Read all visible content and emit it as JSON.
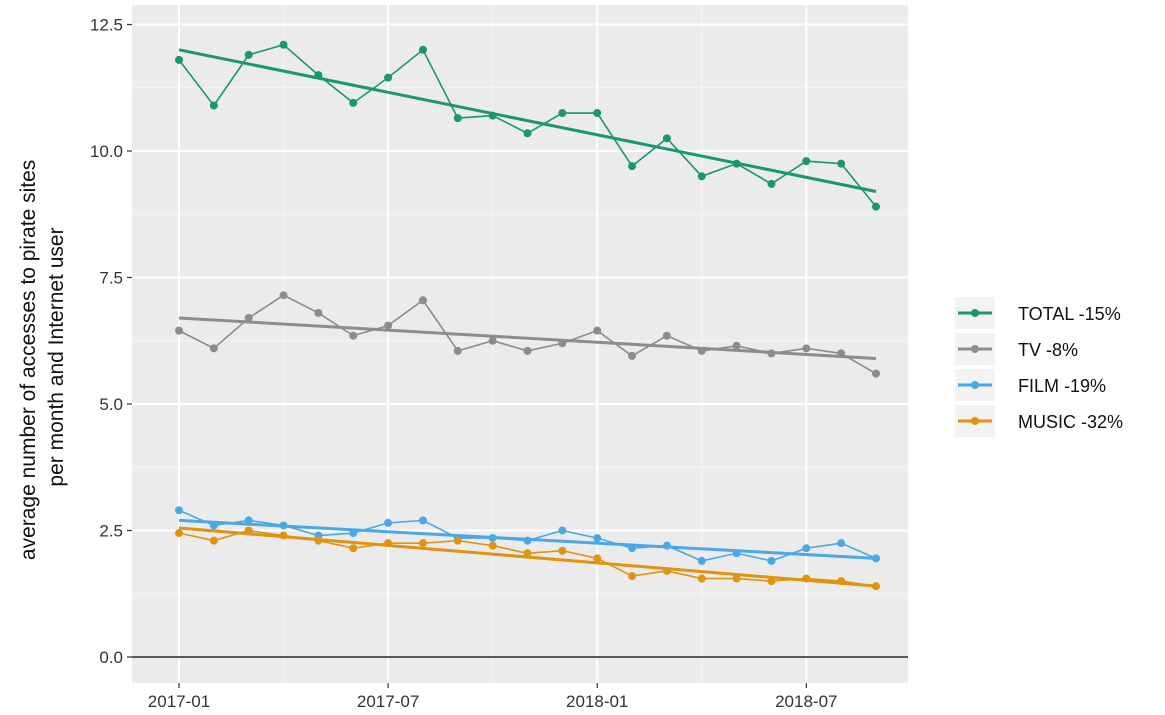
{
  "chart_data": {
    "type": "line",
    "title": "",
    "xlabel": "",
    "ylabel_lines": [
      "average number of accesses to pirate sites",
      "per month and Internet user"
    ],
    "x": [
      "2017-01",
      "2017-02",
      "2017-03",
      "2017-04",
      "2017-05",
      "2017-06",
      "2017-07",
      "2017-08",
      "2017-09",
      "2017-10",
      "2017-11",
      "2017-12",
      "2018-01",
      "2018-02",
      "2018-03",
      "2018-04",
      "2018-05",
      "2018-06",
      "2018-07",
      "2018-08",
      "2018-09"
    ],
    "x_ticks": [
      "2017-01",
      "2017-07",
      "2018-01",
      "2018-07"
    ],
    "y_ticks": [
      "0.0",
      "2.5",
      "5.0",
      "7.5",
      "10.0",
      "12.5"
    ],
    "ylim": [
      -0.3,
      12.75
    ],
    "grid": true,
    "legend_position": "right",
    "series": [
      {
        "name": "TOTAL -15%",
        "color": "#1a9670",
        "values": [
          11.8,
          10.9,
          11.9,
          12.1,
          11.5,
          10.95,
          11.45,
          12.0,
          10.65,
          10.7,
          10.35,
          10.75,
          10.75,
          9.7,
          10.25,
          9.5,
          9.75,
          9.35,
          9.8,
          9.75,
          8.9
        ],
        "trend": [
          12.0,
          9.2
        ]
      },
      {
        "name": "TV -8%",
        "color": "#8c8c8c",
        "values": [
          6.45,
          6.1,
          6.7,
          7.15,
          6.8,
          6.35,
          6.55,
          7.05,
          6.05,
          6.25,
          6.05,
          6.2,
          6.45,
          5.95,
          6.35,
          6.05,
          6.15,
          6.0,
          6.1,
          6.0,
          5.6
        ],
        "trend": [
          6.7,
          5.9
        ]
      },
      {
        "name": "FILM -19%",
        "color": "#4aa8e6",
        "values": [
          2.9,
          2.6,
          2.7,
          2.6,
          2.4,
          2.45,
          2.65,
          2.7,
          2.35,
          2.35,
          2.3,
          2.5,
          2.35,
          2.15,
          2.2,
          1.9,
          2.05,
          1.9,
          2.15,
          2.25,
          1.95
        ],
        "trend": [
          2.7,
          1.95
        ]
      },
      {
        "name": "MUSIC -32%",
        "color": "#e0930f",
        "values": [
          2.45,
          2.3,
          2.5,
          2.4,
          2.3,
          2.15,
          2.25,
          2.25,
          2.3,
          2.2,
          2.05,
          2.1,
          1.95,
          1.6,
          1.7,
          1.55,
          1.55,
          1.5,
          1.55,
          1.5,
          1.4
        ],
        "trend": [
          2.55,
          1.4
        ]
      }
    ]
  }
}
